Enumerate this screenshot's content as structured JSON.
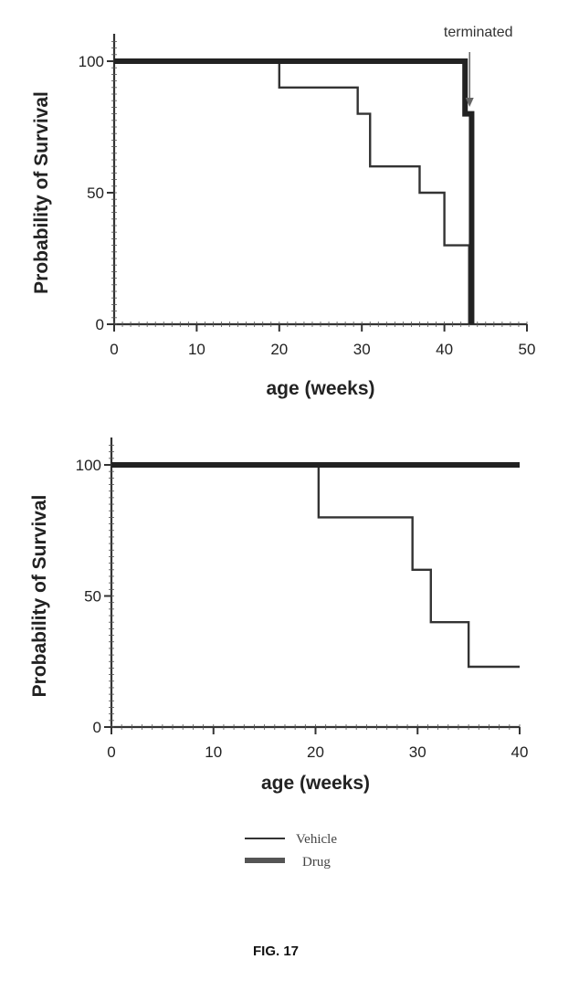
{
  "caption": "FIG. 17",
  "chart_data": [
    {
      "type": "line",
      "step": true,
      "xlabel": "age (weeks)",
      "ylabel": "Probability of Survival",
      "xlim": [
        0,
        50
      ],
      "ylim": [
        0,
        100
      ],
      "xticks": [
        "0",
        "10",
        "20",
        "30",
        "40",
        "50"
      ],
      "yticks": [
        "0",
        "50",
        "100"
      ],
      "annotation": {
        "text": "terminated",
        "x": 43
      },
      "series": [
        {
          "style": "thin",
          "x": [
            0,
            20,
            20,
            29.5,
            29.5,
            31,
            31,
            37,
            37,
            40,
            40,
            43,
            43
          ],
          "y": [
            100,
            100,
            90,
            90,
            80,
            80,
            60,
            60,
            50,
            50,
            30,
            30,
            0
          ]
        },
        {
          "style": "thick",
          "x": [
            0,
            42.5,
            42.5,
            43.3,
            43.3
          ],
          "y": [
            100,
            100,
            80,
            80,
            0
          ]
        }
      ]
    },
    {
      "type": "line",
      "step": true,
      "xlabel": "age (weeks)",
      "ylabel": "Probability of Survival",
      "xlim": [
        0,
        40
      ],
      "ylim": [
        0,
        100
      ],
      "xticks": [
        "0",
        "10",
        "20",
        "30",
        "40"
      ],
      "yticks": [
        "0",
        "50",
        "100"
      ],
      "series": [
        {
          "style": "thin",
          "x": [
            0,
            20.3,
            20.3,
            29.5,
            29.5,
            31.3,
            31.3,
            35,
            35,
            40
          ],
          "y": [
            100,
            100,
            80,
            80,
            60,
            60,
            40,
            40,
            23,
            23
          ]
        },
        {
          "style": "thick",
          "x": [
            0,
            40
          ],
          "y": [
            100,
            100
          ]
        }
      ]
    }
  ],
  "legend": [
    {
      "label": "Vehicle",
      "style": "thin"
    },
    {
      "label": "Drug",
      "style": "thick"
    }
  ]
}
